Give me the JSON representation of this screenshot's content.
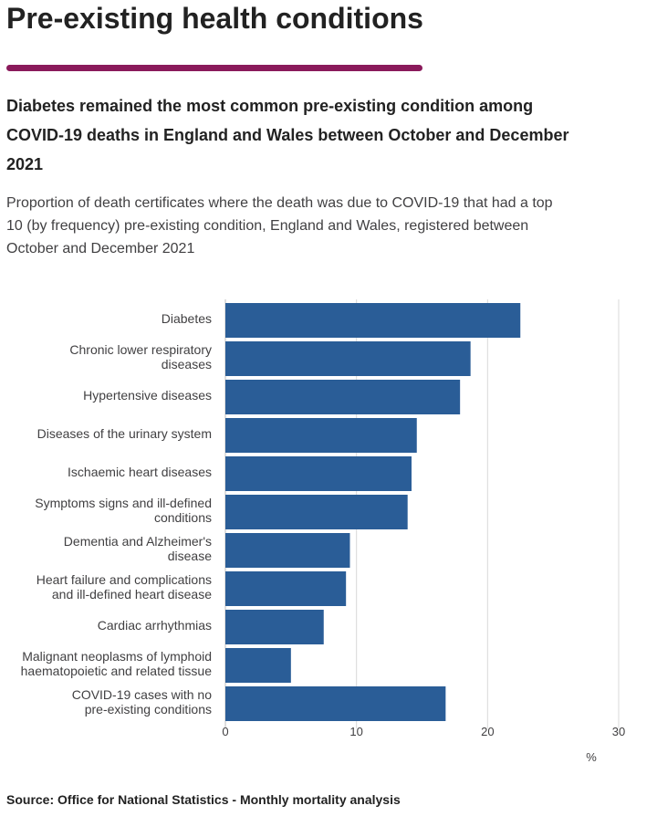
{
  "page": {
    "heading": "Pre-existing health conditions",
    "accent_color": "#8a1a5b"
  },
  "chart_data": {
    "type": "bar",
    "orientation": "horizontal",
    "title": "Diabetes remained the most common pre-existing condition among COVID-19 deaths in England and Wales between October and December 2021",
    "subtitle": "Proportion of death certificates where the death was due to COVID-19 that had a top 10 (by frequency) pre-existing condition, England and Wales, registered between October and December 2021",
    "categories": [
      [
        "Diabetes"
      ],
      [
        "Chronic lower respiratory",
        "diseases"
      ],
      [
        "Hypertensive diseases"
      ],
      [
        "Diseases of the urinary system"
      ],
      [
        "Ischaemic heart diseases"
      ],
      [
        "Symptoms signs and ill-defined",
        "conditions"
      ],
      [
        "Dementia and Alzheimer's",
        "disease"
      ],
      [
        "Heart failure and complications",
        "and ill-defined heart disease"
      ],
      [
        "Cardiac arrhythmias"
      ],
      [
        "Malignant neoplasms of lymphoid",
        "haematopoietic and related tissue"
      ],
      [
        "COVID-19 cases with no",
        "pre-existing conditions"
      ]
    ],
    "values": [
      22.5,
      18.7,
      17.9,
      14.6,
      14.2,
      13.9,
      9.5,
      9.2,
      7.5,
      5.0,
      16.8
    ],
    "xlim": [
      0,
      30
    ],
    "xticks": [
      0,
      10,
      20,
      30
    ],
    "xlabel": "%",
    "ylabel": "",
    "grid": true,
    "bar_color": "#2a5d97"
  },
  "source": "Source: Office for National Statistics - Monthly mortality analysis"
}
